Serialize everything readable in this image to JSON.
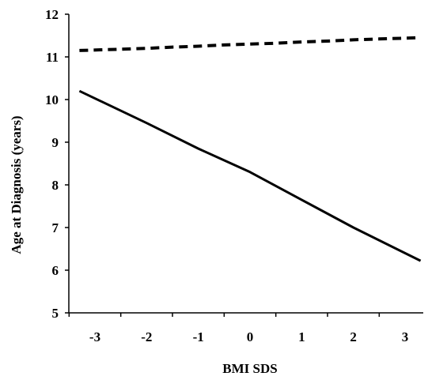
{
  "chart_data": {
    "type": "line",
    "title": "",
    "xlabel": "BMI SDS",
    "ylabel": "Age at Diagnosis (years)",
    "xlim": [
      -3.5,
      3.5
    ],
    "ylim": [
      5,
      12
    ],
    "x_ticks": [
      -3,
      -2,
      -1,
      0,
      1,
      2,
      3
    ],
    "x_tick_labels": [
      "-3",
      "-2",
      "-1",
      "0",
      "1",
      "2",
      "3"
    ],
    "y_ticks": [
      5,
      6,
      7,
      8,
      9,
      10,
      11,
      12
    ],
    "y_tick_labels": [
      "5",
      "6",
      "7",
      "8",
      "9",
      "10",
      "11",
      "12"
    ],
    "grid": false,
    "legend": "none",
    "series": [
      {
        "style": "dashed",
        "color": "#000000",
        "x": [
          -3.3,
          -2.5,
          -2.0,
          -1.5,
          -1.0,
          -0.5,
          0.0,
          0.5,
          1.0,
          1.5,
          2.0,
          2.5,
          3.3
        ],
        "values": [
          11.15,
          11.18,
          11.2,
          11.23,
          11.25,
          11.28,
          11.3,
          11.32,
          11.35,
          11.37,
          11.4,
          11.42,
          11.45
        ]
      },
      {
        "style": "solid",
        "color": "#000000",
        "x": [
          -3.3,
          -2.0,
          -1.0,
          0.0,
          1.0,
          2.0,
          3.3
        ],
        "values": [
          10.2,
          9.45,
          8.85,
          8.3,
          7.65,
          7.0,
          6.22
        ]
      }
    ]
  }
}
